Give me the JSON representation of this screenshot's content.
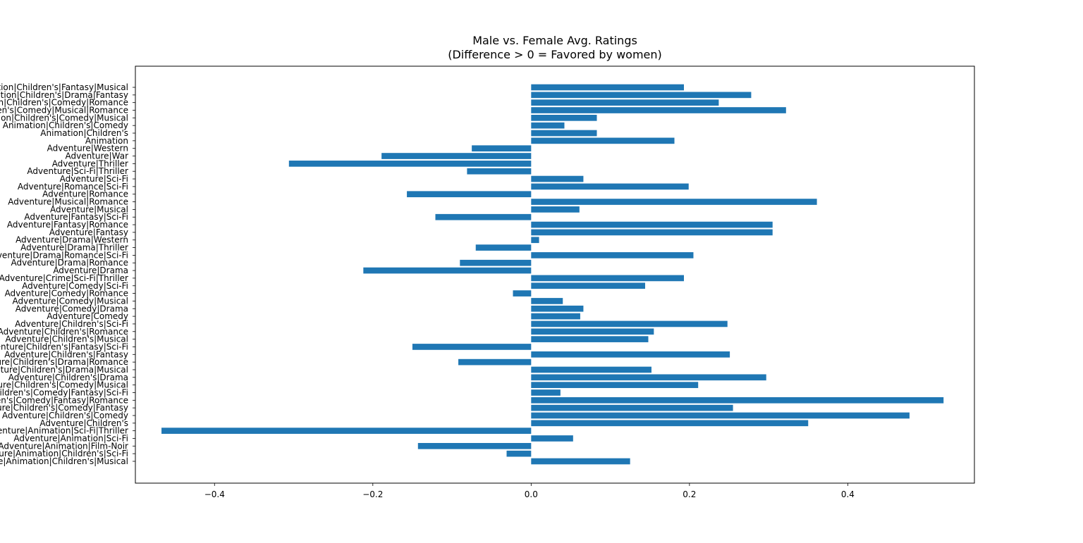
{
  "chart_data": {
    "type": "bar",
    "orientation": "horizontal",
    "title": "Male vs. Female Avg. Ratings",
    "subtitle": "(Difference > 0 = Favored by women)",
    "xlabel": "",
    "ylabel": "",
    "xlim": [
      -0.5,
      0.56
    ],
    "xticks": [
      -0.4,
      -0.2,
      0.0,
      0.2,
      0.4
    ],
    "xtick_labels": [
      "−0.4",
      "−0.2",
      "0.0",
      "0.2",
      "0.4"
    ],
    "grid": false,
    "bar_color": "#1f77b4",
    "categories": [
      "Adventure|Animation|Children's|Musical",
      "Adventure|Animation|Children's|Sci-Fi",
      "Adventure|Animation|Film-Noir",
      "Adventure|Animation|Sci-Fi",
      "Adventure|Animation|Sci-Fi|Thriller",
      "Adventure|Children's",
      "Adventure|Children's|Comedy",
      "Adventure|Children's|Comedy|Fantasy",
      "Adventure|Children's|Comedy|Fantasy|Romance",
      "Adventure|Children's|Comedy|Fantasy|Sci-Fi",
      "Adventure|Children's|Comedy|Musical",
      "Adventure|Children's|Drama",
      "Adventure|Children's|Drama|Musical",
      "Adventure|Children's|Drama|Romance",
      "Adventure|Children's|Fantasy",
      "Adventure|Children's|Fantasy|Sci-Fi",
      "Adventure|Children's|Musical",
      "Adventure|Children's|Romance",
      "Adventure|Children's|Sci-Fi",
      "Adventure|Comedy",
      "Adventure|Comedy|Drama",
      "Adventure|Comedy|Musical",
      "Adventure|Comedy|Romance",
      "Adventure|Comedy|Sci-Fi",
      "Adventure|Crime|Sci-Fi|Thriller",
      "Adventure|Drama",
      "Adventure|Drama|Romance",
      "Adventure|Drama|Romance|Sci-Fi",
      "Adventure|Drama|Thriller",
      "Adventure|Drama|Western",
      "Adventure|Fantasy",
      "Adventure|Fantasy|Romance",
      "Adventure|Fantasy|Sci-Fi",
      "Adventure|Musical",
      "Adventure|Musical|Romance",
      "Adventure|Romance",
      "Adventure|Romance|Sci-Fi",
      "Adventure|Sci-Fi",
      "Adventure|Sci-Fi|Thriller",
      "Adventure|Thriller",
      "Adventure|War",
      "Adventure|Western",
      "Animation",
      "Animation|Children's",
      "Animation|Children's|Comedy",
      "Animation|Children's|Comedy|Musical",
      "Animation|Children's|Comedy|Musical|Romance",
      "Animation|Children's|Comedy|Romance",
      "Animation|Children's|Drama|Fantasy",
      "Animation|Children's|Fantasy|Musical"
    ],
    "values": [
      0.125,
      -0.031,
      -0.143,
      0.053,
      -0.467,
      0.35,
      0.478,
      0.255,
      0.521,
      0.037,
      0.211,
      0.297,
      0.152,
      -0.092,
      0.251,
      -0.15,
      0.148,
      0.155,
      0.248,
      0.062,
      0.066,
      0.04,
      -0.023,
      0.144,
      0.193,
      -0.212,
      -0.09,
      0.205,
      -0.07,
      0.01,
      0.305,
      0.305,
      -0.121,
      0.061,
      0.361,
      -0.157,
      0.199,
      0.066,
      -0.081,
      -0.306,
      -0.189,
      -0.075,
      0.181,
      0.083,
      0.042,
      0.083,
      0.322,
      0.237,
      0.278,
      0.193
    ]
  }
}
